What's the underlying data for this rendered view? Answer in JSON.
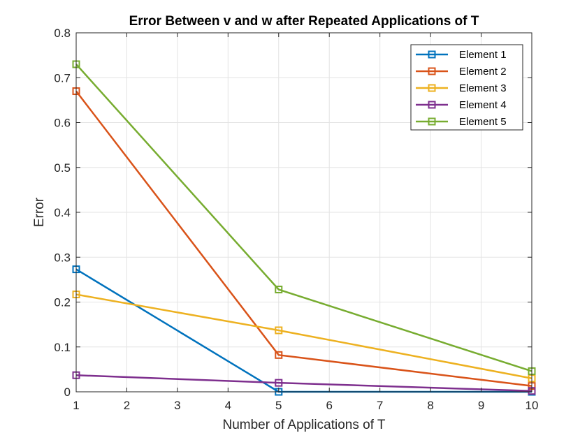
{
  "chart_data": {
    "type": "line",
    "title": "Error Between v and w after Repeated Applications of T",
    "xlabel": "Number of Applications of T",
    "ylabel": "Error",
    "xlim": [
      1,
      10
    ],
    "ylim": [
      0,
      0.8
    ],
    "xticks": [
      1,
      2,
      3,
      4,
      5,
      6,
      7,
      8,
      9,
      10
    ],
    "yticks": [
      0,
      0.1,
      0.2,
      0.3,
      0.4,
      0.5,
      0.6,
      0.7,
      0.8
    ],
    "grid": true,
    "legend_position": "top-right",
    "marker": "square",
    "x": [
      1,
      5,
      10
    ],
    "series": [
      {
        "name": "Element 1",
        "color": "#0072BD",
        "values": [
          0.273,
          0.0,
          0.0
        ]
      },
      {
        "name": "Element 2",
        "color": "#D95319",
        "values": [
          0.67,
          0.082,
          0.013
        ]
      },
      {
        "name": "Element 3",
        "color": "#EDB120",
        "values": [
          0.217,
          0.137,
          0.03
        ]
      },
      {
        "name": "Element 4",
        "color": "#7E2F8E",
        "values": [
          0.037,
          0.02,
          0.002
        ]
      },
      {
        "name": "Element 5",
        "color": "#77AC30",
        "values": [
          0.73,
          0.228,
          0.046
        ]
      }
    ]
  }
}
